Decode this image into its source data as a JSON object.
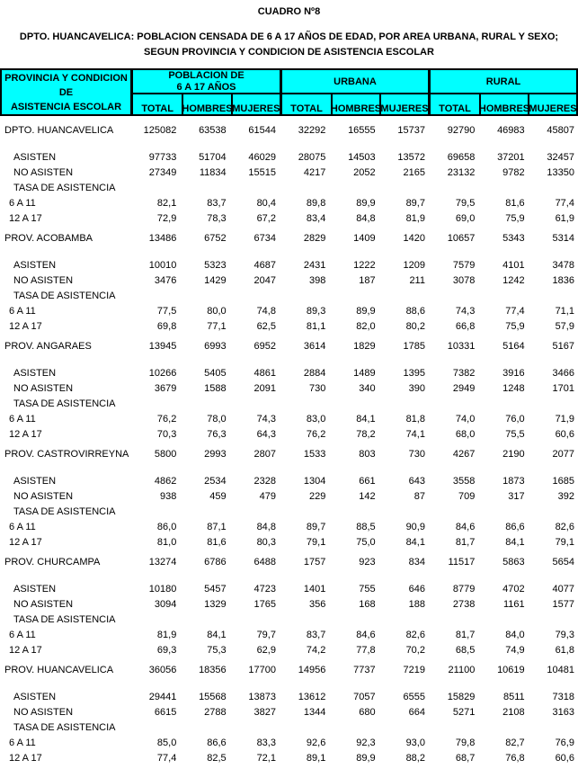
{
  "title": "CUADRO Nº8",
  "subtitle_line1": "DPTO. HUANCAVELICA: POBLACION CENSADA DE 6 A 17 AÑOS DE EDAD, POR AREA URBANA, RURAL Y SEXO;",
  "subtitle_line2": "SEGUN PROVINCIA Y CONDICION DE ASISTENCIA ESCOLAR",
  "colors": {
    "header_bg": "#00FFFF",
    "border": "#000000",
    "text": "#000000",
    "page_bg": "#FFFFFF"
  },
  "table": {
    "header": {
      "stub_lines": [
        "PROVINCIA Y CONDICION",
        "DE",
        "ASISTENCIA ESCOLAR"
      ],
      "groups": [
        {
          "title_lines": [
            "POBLACION DE",
            "6 A 17 AÑOS"
          ],
          "cols": [
            "TOTAL",
            "HOMBRES",
            "MUJERES"
          ]
        },
        {
          "title_lines": [
            "URBANA"
          ],
          "cols": [
            "TOTAL",
            "HOMBRES",
            "MUJERES"
          ]
        },
        {
          "title_lines": [
            "RURAL"
          ],
          "cols": [
            "TOTAL",
            "HOMBRES",
            "MUJERES"
          ]
        }
      ]
    },
    "sections": [
      {
        "name": "DPTO. HUANCAVELICA",
        "totals": [
          "125082",
          "63538",
          "61544",
          "32292",
          "16555",
          "15737",
          "92790",
          "46983",
          "45807"
        ],
        "rows": [
          {
            "label": "ASISTEN",
            "kind": "sub",
            "values": [
              "97733",
              "51704",
              "46029",
              "28075",
              "14503",
              "13572",
              "69658",
              "37201",
              "32457"
            ]
          },
          {
            "label": "NO ASISTEN",
            "kind": "sub",
            "values": [
              "27349",
              "11834",
              "15515",
              "4217",
              "2052",
              "2165",
              "23132",
              "9782",
              "13350"
            ]
          },
          {
            "label": "TASA DE ASISTENCIA",
            "kind": "sub",
            "values": []
          },
          {
            "label": "6 A 11",
            "kind": "age",
            "values": [
              "82,1",
              "83,7",
              "80,4",
              "89,8",
              "89,9",
              "89,7",
              "79,5",
              "81,6",
              "77,4"
            ]
          },
          {
            "label": "12 A 17",
            "kind": "age",
            "values": [
              "72,9",
              "78,3",
              "67,2",
              "83,4",
              "84,8",
              "81,9",
              "69,0",
              "75,9",
              "61,9"
            ]
          }
        ]
      },
      {
        "name": "PROV. ACOBAMBA",
        "totals": [
          "13486",
          "6752",
          "6734",
          "2829",
          "1409",
          "1420",
          "10657",
          "5343",
          "5314"
        ],
        "rows": [
          {
            "label": "ASISTEN",
            "kind": "sub",
            "values": [
              "10010",
              "5323",
              "4687",
              "2431",
              "1222",
              "1209",
              "7579",
              "4101",
              "3478"
            ]
          },
          {
            "label": "NO ASISTEN",
            "kind": "sub",
            "values": [
              "3476",
              "1429",
              "2047",
              "398",
              "187",
              "211",
              "3078",
              "1242",
              "1836"
            ]
          },
          {
            "label": "TASA DE ASISTENCIA",
            "kind": "sub",
            "values": []
          },
          {
            "label": "6 A 11",
            "kind": "age",
            "values": [
              "77,5",
              "80,0",
              "74,8",
              "89,3",
              "89,9",
              "88,6",
              "74,3",
              "77,4",
              "71,1"
            ]
          },
          {
            "label": "12 A 17",
            "kind": "age",
            "values": [
              "69,8",
              "77,1",
              "62,5",
              "81,1",
              "82,0",
              "80,2",
              "66,8",
              "75,9",
              "57,9"
            ]
          }
        ]
      },
      {
        "name": "PROV. ANGARAES",
        "totals": [
          "13945",
          "6993",
          "6952",
          "3614",
          "1829",
          "1785",
          "10331",
          "5164",
          "5167"
        ],
        "rows": [
          {
            "label": "ASISTEN",
            "kind": "sub",
            "values": [
              "10266",
              "5405",
              "4861",
              "2884",
              "1489",
              "1395",
              "7382",
              "3916",
              "3466"
            ]
          },
          {
            "label": "NO ASISTEN",
            "kind": "sub",
            "values": [
              "3679",
              "1588",
              "2091",
              "730",
              "340",
              "390",
              "2949",
              "1248",
              "1701"
            ]
          },
          {
            "label": "TASA DE ASISTENCIA",
            "kind": "sub",
            "values": []
          },
          {
            "label": "6 A 11",
            "kind": "age",
            "values": [
              "76,2",
              "78,0",
              "74,3",
              "83,0",
              "84,1",
              "81,8",
              "74,0",
              "76,0",
              "71,9"
            ]
          },
          {
            "label": "12 A 17",
            "kind": "age",
            "values": [
              "70,3",
              "76,3",
              "64,3",
              "76,2",
              "78,2",
              "74,1",
              "68,0",
              "75,5",
              "60,6"
            ]
          }
        ]
      },
      {
        "name": "PROV. CASTROVIRREYNA",
        "totals": [
          "5800",
          "2993",
          "2807",
          "1533",
          "803",
          "730",
          "4267",
          "2190",
          "2077"
        ],
        "rows": [
          {
            "label": "ASISTEN",
            "kind": "sub",
            "values": [
              "4862",
              "2534",
              "2328",
              "1304",
              "661",
              "643",
              "3558",
              "1873",
              "1685"
            ]
          },
          {
            "label": "NO ASISTEN",
            "kind": "sub",
            "values": [
              "938",
              "459",
              "479",
              "229",
              "142",
              "87",
              "709",
              "317",
              "392"
            ]
          },
          {
            "label": "TASA DE ASISTENCIA",
            "kind": "sub",
            "values": []
          },
          {
            "label": "6 A 11",
            "kind": "age",
            "values": [
              "86,0",
              "87,1",
              "84,8",
              "89,7",
              "88,5",
              "90,9",
              "84,6",
              "86,6",
              "82,6"
            ]
          },
          {
            "label": "12 A 17",
            "kind": "age",
            "values": [
              "81,0",
              "81,6",
              "80,3",
              "79,1",
              "75,0",
              "84,1",
              "81,7",
              "84,1",
              "79,1"
            ]
          }
        ]
      },
      {
        "name": "PROV. CHURCAMPA",
        "totals": [
          "13274",
          "6786",
          "6488",
          "1757",
          "923",
          "834",
          "11517",
          "5863",
          "5654"
        ],
        "rows": [
          {
            "label": "ASISTEN",
            "kind": "sub",
            "values": [
              "10180",
              "5457",
              "4723",
              "1401",
              "755",
              "646",
              "8779",
              "4702",
              "4077"
            ]
          },
          {
            "label": "NO ASISTEN",
            "kind": "sub",
            "values": [
              "3094",
              "1329",
              "1765",
              "356",
              "168",
              "188",
              "2738",
              "1161",
              "1577"
            ]
          },
          {
            "label": "TASA DE ASISTENCIA",
            "kind": "sub",
            "values": []
          },
          {
            "label": "6 A 11",
            "kind": "age",
            "values": [
              "81,9",
              "84,1",
              "79,7",
              "83,7",
              "84,6",
              "82,6",
              "81,7",
              "84,0",
              "79,3"
            ]
          },
          {
            "label": "12 A 17",
            "kind": "age",
            "values": [
              "69,3",
              "75,3",
              "62,9",
              "74,2",
              "77,8",
              "70,2",
              "68,5",
              "74,9",
              "61,8"
            ]
          }
        ]
      },
      {
        "name": "PROV. HUANCAVELICA",
        "totals": [
          "36056",
          "18356",
          "17700",
          "14956",
          "7737",
          "7219",
          "21100",
          "10619",
          "10481"
        ],
        "rows": [
          {
            "label": "ASISTEN",
            "kind": "sub",
            "values": [
              "29441",
              "15568",
              "13873",
              "13612",
              "7057",
              "6555",
              "15829",
              "8511",
              "7318"
            ]
          },
          {
            "label": "NO ASISTEN",
            "kind": "sub",
            "values": [
              "6615",
              "2788",
              "3827",
              "1344",
              "680",
              "664",
              "5271",
              "2108",
              "3163"
            ]
          },
          {
            "label": "TASA DE ASISTENCIA",
            "kind": "sub",
            "values": []
          },
          {
            "label": "6 A 11",
            "kind": "age",
            "values": [
              "85,0",
              "86,6",
              "83,3",
              "92,6",
              "92,3",
              "93,0",
              "79,8",
              "82,7",
              "76,9"
            ]
          },
          {
            "label": "12 A 17",
            "kind": "age",
            "values": [
              "77,4",
              "82,5",
              "72,1",
              "89,1",
              "89,9",
              "88,2",
              "68,7",
              "76,8",
              "60,6"
            ]
          }
        ]
      }
    ]
  }
}
